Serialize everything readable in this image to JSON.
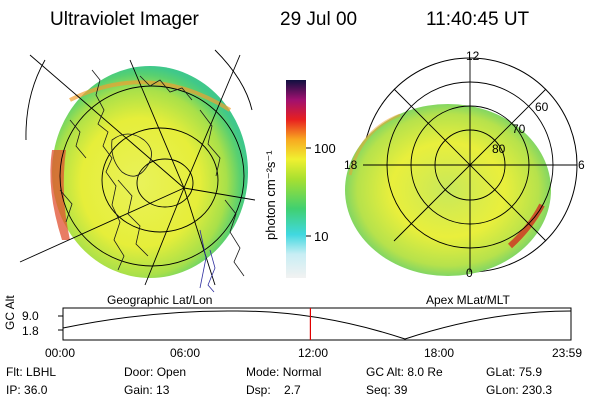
{
  "header": {
    "title": "Ultraviolet Imager",
    "date": "29 Jul 00",
    "time": "11:40:45 UT"
  },
  "colorbar": {
    "unit_label": "photon cm⁻²s⁻¹",
    "ticks": [
      {
        "label": "100",
        "value": 100
      },
      {
        "label": "10",
        "value": 10
      }
    ],
    "scale": "log"
  },
  "left_map": {
    "caption": "Geographic Lat/Lon"
  },
  "right_map": {
    "caption": "Apex MLat/MLT",
    "mlt_labels": [
      "12",
      "18",
      "6",
      "0"
    ],
    "lat_labels": [
      "60",
      "70",
      "80"
    ]
  },
  "altitude_plot": {
    "ylabel": "GC Alt",
    "yticks": [
      "9.0",
      "1.8"
    ],
    "xticks": [
      "00:00",
      "06:00",
      "12:00",
      "18:00",
      "23:59"
    ],
    "current_time_hours": 11.68,
    "marker_color": "#e00000"
  },
  "status": {
    "row1": [
      {
        "key": "Flt:",
        "value": "LBHL"
      },
      {
        "key": "Door:",
        "value": "Open"
      },
      {
        "key": "Mode:",
        "value": "Normal"
      },
      {
        "key": "GC Alt:",
        "value": "8.0 Re"
      },
      {
        "key": "GLat:",
        "value": "75.9"
      }
    ],
    "row2": [
      {
        "key": "IP:",
        "value": "36.0"
      },
      {
        "key": "Gain:",
        "value": "13"
      },
      {
        "key": "Dsp:",
        "value": "2.7"
      },
      {
        "key": "Seq:",
        "value": "39"
      },
      {
        "key": "GLon:",
        "value": "230.3"
      }
    ]
  }
}
